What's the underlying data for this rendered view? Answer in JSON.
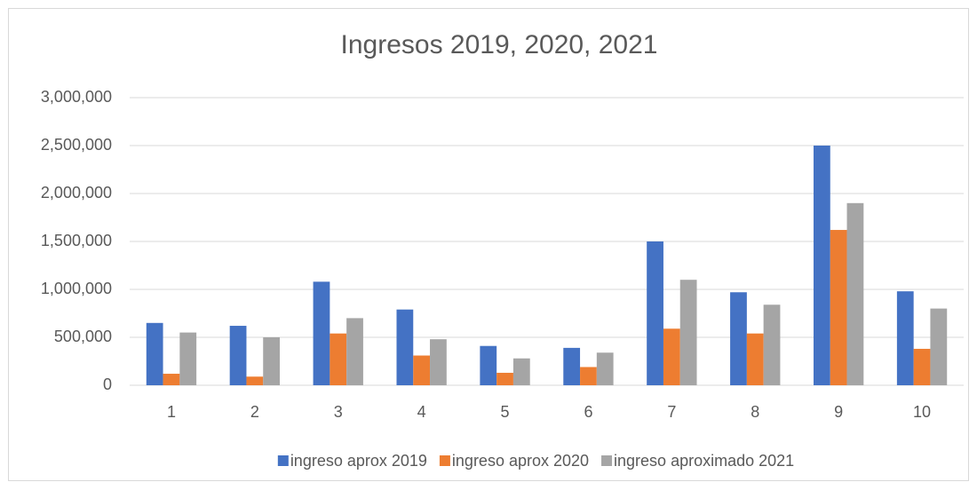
{
  "chart_data": {
    "type": "bar",
    "title": "Ingresos 2019, 2020, 2021",
    "categories": [
      "1",
      "2",
      "3",
      "4",
      "5",
      "6",
      "7",
      "8",
      "9",
      "10"
    ],
    "series": [
      {
        "name": "ingreso aprox 2019",
        "color": "#4472c4",
        "values": [
          650000,
          620000,
          1080000,
          790000,
          410000,
          390000,
          1500000,
          970000,
          2500000,
          980000
        ]
      },
      {
        "name": "ingreso aprox 2020",
        "color": "#ed7d31",
        "values": [
          120000,
          90000,
          540000,
          310000,
          130000,
          190000,
          590000,
          540000,
          1620000,
          380000
        ]
      },
      {
        "name": "ingreso aproximado 2021",
        "color": "#a5a5a5",
        "values": [
          550000,
          500000,
          700000,
          480000,
          280000,
          340000,
          1100000,
          840000,
          1900000,
          800000
        ]
      }
    ],
    "ylim": [
      0,
      3000000
    ],
    "yticks": [
      0,
      {
        "value": 500000,
        "label": "500,000"
      },
      {
        "value": 1000000,
        "label": "1,000,000"
      },
      {
        "value": 1500000,
        "label": "1,500,000"
      },
      {
        "value": 2000000,
        "label": "2,000,000"
      },
      {
        "value": 2500000,
        "label": "2,500,000"
      },
      {
        "value": 3000000,
        "label": "3,000,000"
      }
    ],
    "grid": true,
    "legend": "bottom"
  }
}
